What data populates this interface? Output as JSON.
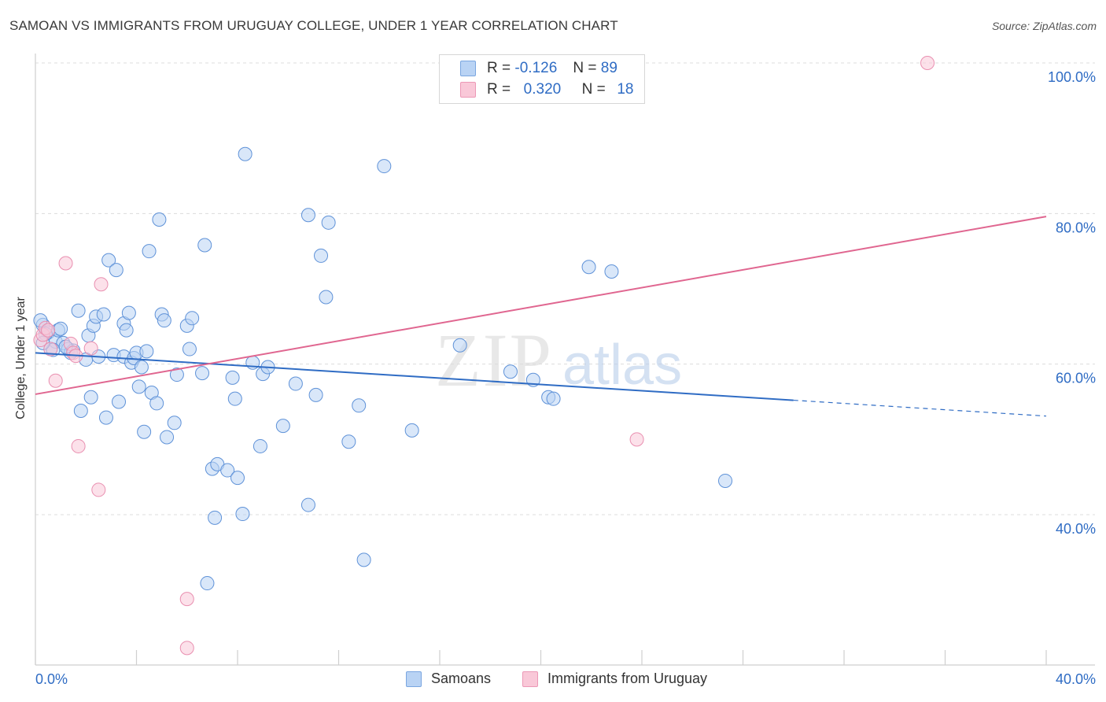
{
  "title": "SAMOAN VS IMMIGRANTS FROM URUGUAY COLLEGE, UNDER 1 YEAR CORRELATION CHART",
  "source": "Source: ZipAtlas.com",
  "legend": {
    "r_label": "R =",
    "n_label": "N =",
    "samoans": {
      "r": "-0.126",
      "n": "89"
    },
    "uruguay": {
      "r": "0.320",
      "n": "18"
    }
  },
  "bottom_legend": {
    "samoans": "Samoans",
    "uruguay": "Immigrants from Uruguay"
  },
  "watermark": {
    "zip": "ZIP",
    "atlas": "atlas"
  },
  "chart_data": {
    "type": "scatter",
    "title": "SAMOAN VS IMMIGRANTS FROM URUGUAY COLLEGE, UNDER 1 YEAR CORRELATION CHART",
    "xlabel": "",
    "ylabel": "College, Under 1 year",
    "xlim": [
      0,
      40
    ],
    "ylim": [
      20,
      102
    ],
    "x_tick_labels": [
      "0.0%",
      "40.0%"
    ],
    "y_tick_labels": [
      "100.0%",
      "80.0%",
      "60.0%",
      "40.0%"
    ],
    "y_ticks": [
      100,
      80,
      60,
      40
    ],
    "grid": true,
    "legend_position": "top-center",
    "colors": {
      "samoans": "#2f6cc4",
      "uruguay": "#e06690",
      "samoans_fill": "#b9d3f4",
      "uruguay_fill": "#f9c8d8"
    },
    "series": [
      {
        "name": "Samoans",
        "trend": {
          "x1": 0.0,
          "y1": 61.5,
          "x2": 30.0,
          "y2": 55.2,
          "dash_to_x": 40.0,
          "dash_to_y": 53.1
        },
        "points": [
          [
            0.3,
            65.2
          ],
          [
            0.5,
            64.2
          ],
          [
            0.6,
            62.0
          ],
          [
            0.8,
            63.0
          ],
          [
            0.9,
            64.5
          ],
          [
            1.0,
            64.7
          ],
          [
            1.1,
            62.8
          ],
          [
            1.3,
            62.0
          ],
          [
            1.4,
            61.5
          ],
          [
            1.5,
            61.8
          ],
          [
            1.7,
            67.1
          ],
          [
            1.8,
            53.8
          ],
          [
            2.0,
            60.6
          ],
          [
            2.1,
            63.8
          ],
          [
            2.2,
            55.6
          ],
          [
            2.3,
            65.1
          ],
          [
            2.4,
            66.3
          ],
          [
            2.5,
            61.0
          ],
          [
            2.7,
            66.6
          ],
          [
            2.8,
            52.9
          ],
          [
            2.9,
            73.8
          ],
          [
            3.1,
            61.2
          ],
          [
            3.2,
            72.5
          ],
          [
            3.3,
            55.0
          ],
          [
            3.5,
            61.0
          ],
          [
            3.5,
            65.4
          ],
          [
            3.6,
            64.5
          ],
          [
            3.7,
            66.8
          ],
          [
            3.8,
            60.2
          ],
          [
            3.9,
            60.8
          ],
          [
            4.0,
            61.5
          ],
          [
            4.1,
            57.0
          ],
          [
            4.2,
            59.6
          ],
          [
            4.3,
            51.0
          ],
          [
            4.4,
            61.7
          ],
          [
            4.5,
            75.0
          ],
          [
            4.6,
            56.2
          ],
          [
            4.8,
            54.8
          ],
          [
            4.9,
            79.2
          ],
          [
            5.0,
            66.6
          ],
          [
            5.1,
            65.8
          ],
          [
            5.2,
            50.3
          ],
          [
            5.5,
            52.2
          ],
          [
            5.6,
            58.6
          ],
          [
            6.0,
            65.1
          ],
          [
            6.1,
            62.0
          ],
          [
            6.2,
            66.1
          ],
          [
            6.6,
            58.8
          ],
          [
            6.7,
            75.8
          ],
          [
            6.8,
            30.9
          ],
          [
            7.0,
            46.1
          ],
          [
            7.1,
            39.6
          ],
          [
            7.2,
            46.7
          ],
          [
            7.6,
            45.9
          ],
          [
            7.8,
            58.2
          ],
          [
            7.9,
            55.4
          ],
          [
            8.0,
            44.9
          ],
          [
            8.2,
            40.1
          ],
          [
            8.3,
            87.9
          ],
          [
            8.6,
            60.2
          ],
          [
            8.9,
            49.1
          ],
          [
            9.0,
            58.7
          ],
          [
            9.2,
            59.6
          ],
          [
            9.8,
            51.8
          ],
          [
            10.3,
            57.4
          ],
          [
            10.8,
            41.3
          ],
          [
            10.8,
            79.8
          ],
          [
            11.1,
            55.9
          ],
          [
            11.3,
            74.4
          ],
          [
            11.5,
            68.9
          ],
          [
            11.6,
            78.8
          ],
          [
            12.4,
            49.7
          ],
          [
            12.8,
            54.5
          ],
          [
            13.0,
            34.0
          ],
          [
            13.8,
            86.3
          ],
          [
            14.9,
            51.2
          ],
          [
            16.8,
            62.5
          ],
          [
            18.8,
            59.0
          ],
          [
            19.7,
            57.9
          ],
          [
            20.3,
            55.6
          ],
          [
            20.5,
            55.4
          ],
          [
            21.9,
            72.9
          ],
          [
            22.8,
            72.3
          ],
          [
            27.3,
            44.5
          ],
          [
            0.2,
            65.8
          ],
          [
            0.4,
            64.0
          ],
          [
            1.2,
            62.3
          ],
          [
            0.7,
            61.9
          ],
          [
            0.3,
            62.8
          ]
        ]
      },
      {
        "name": "Immigrants from Uruguay",
        "trend": {
          "x1": 0.0,
          "y1": 56.0,
          "x2": 40.0,
          "y2": 79.6
        },
        "points": [
          [
            0.2,
            63.2
          ],
          [
            0.3,
            63.9
          ],
          [
            0.4,
            64.8
          ],
          [
            0.6,
            62.0
          ],
          [
            0.8,
            57.8
          ],
          [
            1.2,
            73.4
          ],
          [
            1.4,
            62.7
          ],
          [
            1.5,
            61.5
          ],
          [
            1.6,
            61.1
          ],
          [
            1.7,
            49.1
          ],
          [
            2.2,
            62.1
          ],
          [
            2.5,
            43.3
          ],
          [
            2.6,
            70.6
          ],
          [
            6.0,
            28.8
          ],
          [
            6.0,
            22.3
          ],
          [
            23.8,
            50.0
          ],
          [
            35.3,
            100.0
          ],
          [
            0.5,
            64.5
          ]
        ]
      }
    ]
  }
}
